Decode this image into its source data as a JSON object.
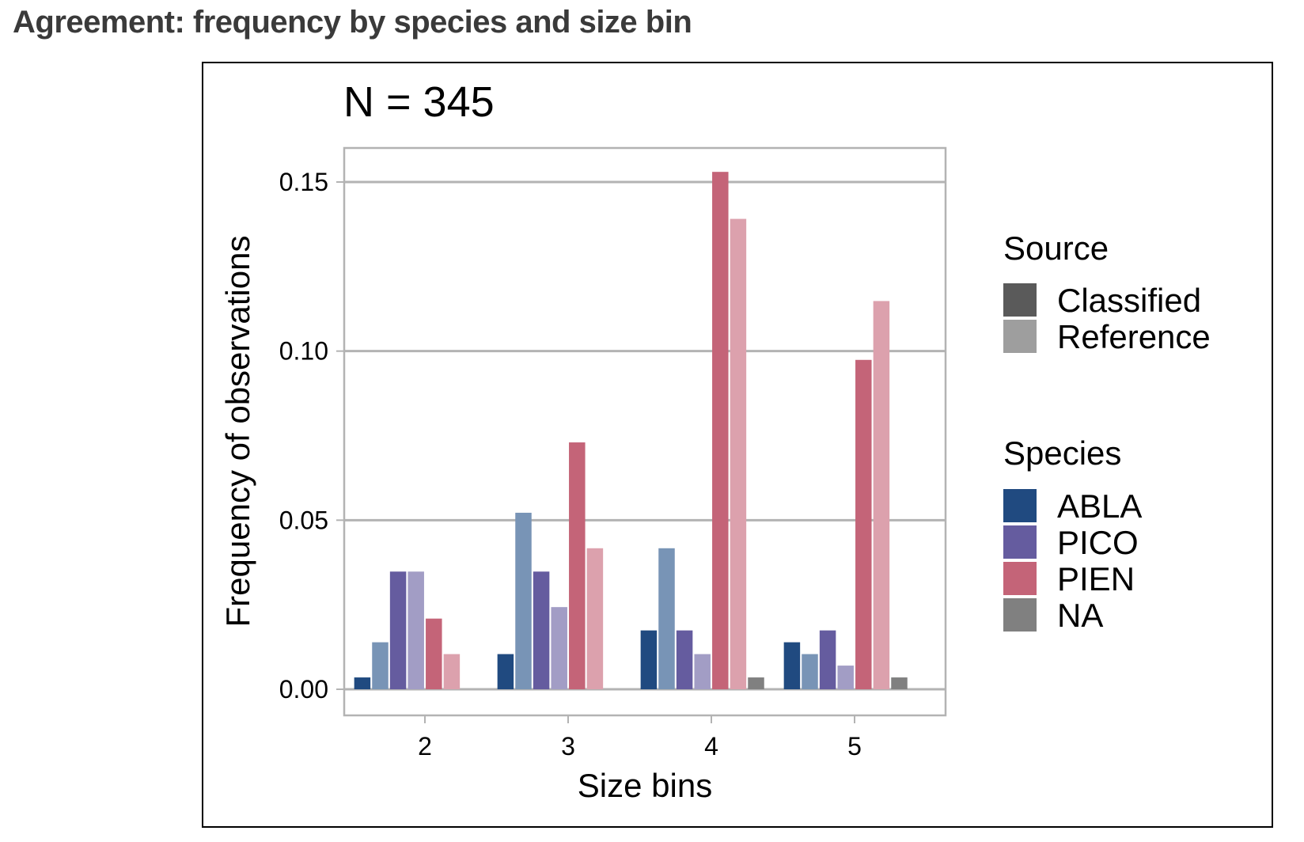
{
  "page": {
    "title": "Agreement: frequency by species and size bin"
  },
  "chart_data": {
    "type": "bar",
    "title": "N = 345",
    "xlabel": "Size bins",
    "ylabel": "Frequency of observations",
    "categories": [
      "2",
      "3",
      "4",
      "5"
    ],
    "ylim": [
      -0.0075,
      0.16
    ],
    "yticks": [
      0.0,
      0.05,
      0.1,
      0.15
    ],
    "ytick_labels": [
      "0.00",
      "0.05",
      "0.10",
      "0.15"
    ],
    "grid": "horizontal major",
    "legend_position": "right",
    "bar_groups": [
      {
        "species": "ABLA",
        "source": "Classified"
      },
      {
        "species": "ABLA",
        "source": "Reference"
      },
      {
        "species": "PICO",
        "source": "Classified"
      },
      {
        "species": "PICO",
        "source": "Reference"
      },
      {
        "species": "PIEN",
        "source": "Classified"
      },
      {
        "species": "PIEN",
        "source": "Reference"
      },
      {
        "species": "NA",
        "source": "Classified"
      },
      {
        "species": "NA",
        "source": "Reference"
      }
    ],
    "series": [
      {
        "species": "ABLA",
        "source": "Classified",
        "values": [
          0.0035,
          0.0104,
          0.0174,
          0.0139
        ]
      },
      {
        "species": "ABLA",
        "source": "Reference",
        "values": [
          0.0139,
          0.0522,
          0.0417,
          0.0104
        ]
      },
      {
        "species": "PICO",
        "source": "Classified",
        "values": [
          0.0348,
          0.0348,
          0.0174,
          0.0174
        ]
      },
      {
        "species": "PICO",
        "source": "Reference",
        "values": [
          0.0348,
          0.0243,
          0.0104,
          0.007
        ]
      },
      {
        "species": "PIEN",
        "source": "Classified",
        "values": [
          0.0209,
          0.073,
          0.153,
          0.0974
        ]
      },
      {
        "species": "PIEN",
        "source": "Reference",
        "values": [
          0.0104,
          0.0417,
          0.1391,
          0.1148
        ]
      },
      {
        "species": "NA",
        "source": "Classified",
        "values": [
          0,
          0,
          0.0035,
          0.0035
        ]
      },
      {
        "species": "NA",
        "source": "Reference",
        "values": [
          0,
          0,
          0,
          0
        ]
      }
    ],
    "legend": {
      "source": {
        "title": "Source",
        "items": [
          {
            "label": "Classified",
            "color": "#5a5a5a"
          },
          {
            "label": "Reference",
            "color": "#9e9e9e"
          }
        ]
      },
      "species": {
        "title": "Species",
        "items": [
          {
            "label": "ABLA",
            "color": "#204a80"
          },
          {
            "label": "PICO",
            "color": "#655c9f"
          },
          {
            "label": "PIEN",
            "color": "#c46478"
          },
          {
            "label": "NA",
            "color": "#808080"
          }
        ]
      }
    },
    "colors": {
      "ABLA": {
        "Classified": "#204a80",
        "Reference": "#7894b6"
      },
      "PICO": {
        "Classified": "#655c9f",
        "Reference": "#a29dc5"
      },
      "PIEN": {
        "Classified": "#c46478",
        "Reference": "#dca1ad"
      },
      "NA": {
        "Classified": "#808080",
        "Reference": "#b3b3b3"
      },
      "grid": "#b3b3b3",
      "panel_border": "#b3b3b3",
      "frame_border": "#000000"
    }
  }
}
